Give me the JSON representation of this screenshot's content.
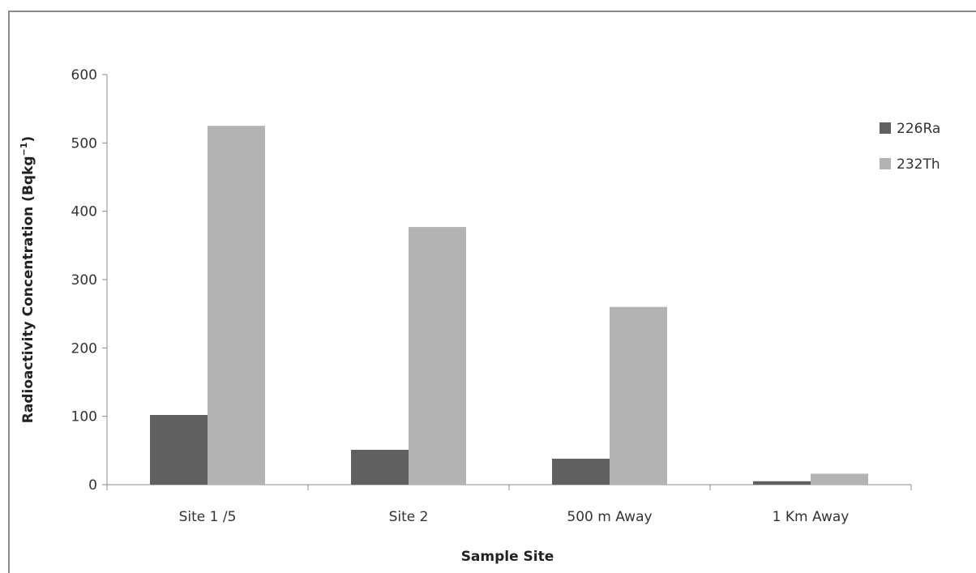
{
  "chart_data": {
    "type": "bar",
    "categories": [
      "Site 1 /5",
      "Site 2",
      "500 m Away",
      "1 Km Away"
    ],
    "series": [
      {
        "name": "226Ra",
        "values": [
          102,
          51,
          38,
          5
        ],
        "color": "#606060"
      },
      {
        "name": "232Th",
        "values": [
          525,
          377,
          260,
          16
        ],
        "color": "#b3b3b3"
      }
    ],
    "xlabel": "Sample Site",
    "ylabel": {
      "main": "Radioactivity Concentration (Bqkg",
      "sup": "−1",
      "close": ")"
    },
    "ylim": [
      0,
      600
    ],
    "yticks": [
      "0",
      "100",
      "200",
      "300",
      "400",
      "500",
      "600"
    ],
    "grid": false,
    "legend_position": "right"
  }
}
